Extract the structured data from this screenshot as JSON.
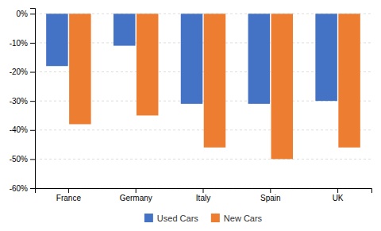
{
  "chart_data": {
    "type": "bar",
    "categories": [
      "France",
      "Germany",
      "Italy",
      "Spain",
      "UK"
    ],
    "series": [
      {
        "name": "Used Cars",
        "color": "#4472C4",
        "values": [
          -18,
          -11,
          -31,
          -31,
          -30
        ]
      },
      {
        "name": "New Cars",
        "color": "#ED7D31",
        "values": [
          -38,
          -35,
          -46,
          -50,
          -46
        ]
      }
    ],
    "ylim": [
      -60,
      2
    ],
    "yticks": [
      {
        "value": 0,
        "label": "0%"
      },
      {
        "value": -10,
        "label": "-10%"
      },
      {
        "value": -20,
        "label": "-20%"
      },
      {
        "value": -30,
        "label": "-30%"
      },
      {
        "value": -40,
        "label": "-40%"
      },
      {
        "value": -50,
        "label": "-50%"
      },
      {
        "value": -60,
        "label": "-60%"
      }
    ],
    "grid": true,
    "legend": "bottom"
  }
}
